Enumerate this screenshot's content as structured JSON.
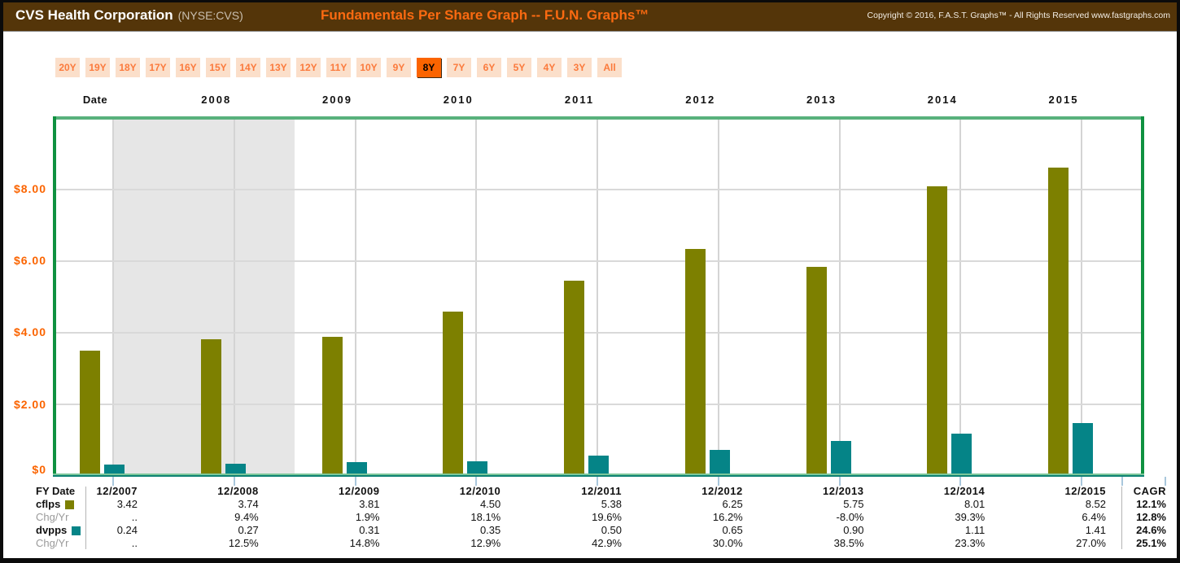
{
  "header": {
    "company": "CVS Health Corporation",
    "ticker": "(NYSE:CVS)",
    "graph_title": "Fundamentals Per Share Graph -- F.U.N. Graphs™",
    "copyright": "Copyright © 2016, F.A.S.T. Graphs™ - All Rights Reserved www.fastgraphs.com"
  },
  "period_buttons": {
    "options": [
      "20Y",
      "19Y",
      "18Y",
      "17Y",
      "16Y",
      "15Y",
      "14Y",
      "13Y",
      "12Y",
      "11Y",
      "10Y",
      "9Y",
      "8Y",
      "7Y",
      "6Y",
      "5Y",
      "4Y",
      "3Y",
      "All"
    ],
    "selected": "8Y"
  },
  "axis": {
    "date_label": "Date",
    "top_years": [
      "2008",
      "2009",
      "2010",
      "2011",
      "2012",
      "2013",
      "2014",
      "2015"
    ],
    "y_ticks": [
      "$8.00",
      "$6.00",
      "$4.00",
      "$2.00",
      "$0"
    ]
  },
  "chart_data": {
    "type": "bar",
    "title": "Fundamentals Per Share Graph -- F.U.N. Graphs™",
    "categories": [
      "12/2007",
      "12/2008",
      "12/2009",
      "12/2010",
      "12/2011",
      "12/2012",
      "12/2013",
      "12/2014",
      "12/2015"
    ],
    "series": [
      {
        "name": "cflps",
        "color": "#7d8000",
        "values": [
          3.42,
          3.74,
          3.81,
          4.5,
          5.38,
          6.25,
          5.75,
          8.01,
          8.52
        ]
      },
      {
        "name": "dvpps",
        "color": "#058487",
        "values": [
          0.24,
          0.27,
          0.31,
          0.35,
          0.5,
          0.65,
          0.9,
          1.11,
          1.41
        ]
      }
    ],
    "xlabel": "Date",
    "ylabel": "",
    "ylim": [
      0,
      9.9
    ],
    "y_gridline_values": [
      2,
      4,
      6,
      8
    ],
    "grid": true,
    "legend_position": "table-row-labels",
    "shaded_region_category_span": [
      0,
      1.5
    ]
  },
  "table": {
    "row_labels": [
      "FY Date",
      "cflps",
      "Chg/Yr",
      "dvpps",
      "Chg/Yr"
    ],
    "columns": [
      {
        "fy": "12/2007",
        "cflps": "3.42",
        "cflps_chg": "..",
        "dvpps": "0.24",
        "dvpps_chg": ".."
      },
      {
        "fy": "12/2008",
        "cflps": "3.74",
        "cflps_chg": "9.4%",
        "dvpps": "0.27",
        "dvpps_chg": "12.5%"
      },
      {
        "fy": "12/2009",
        "cflps": "3.81",
        "cflps_chg": "1.9%",
        "dvpps": "0.31",
        "dvpps_chg": "14.8%"
      },
      {
        "fy": "12/2010",
        "cflps": "4.50",
        "cflps_chg": "18.1%",
        "dvpps": "0.35",
        "dvpps_chg": "12.9%"
      },
      {
        "fy": "12/2011",
        "cflps": "5.38",
        "cflps_chg": "19.6%",
        "dvpps": "0.50",
        "dvpps_chg": "42.9%"
      },
      {
        "fy": "12/2012",
        "cflps": "6.25",
        "cflps_chg": "16.2%",
        "dvpps": "0.65",
        "dvpps_chg": "30.0%"
      },
      {
        "fy": "12/2013",
        "cflps": "5.75",
        "cflps_chg": "-8.0%",
        "dvpps": "0.90",
        "dvpps_chg": "38.5%"
      },
      {
        "fy": "12/2014",
        "cflps": "8.01",
        "cflps_chg": "39.3%",
        "dvpps": "1.11",
        "dvpps_chg": "23.3%"
      },
      {
        "fy": "12/2015",
        "cflps": "8.52",
        "cflps_chg": "6.4%",
        "dvpps": "1.41",
        "dvpps_chg": "27.0%"
      }
    ],
    "cagr": {
      "label": "CAGR",
      "cflps": "12.1%",
      "cflps_chg": "12.8%",
      "dvpps": "24.6%",
      "dvpps_chg": "25.1%"
    }
  },
  "colors": {
    "header_bg": "#543509",
    "accent_orange": "#fb6400",
    "button_bg": "#fbdfca",
    "button_text": "#fb7a3c",
    "selected_button_bg": "#fb6400",
    "cflps_bar": "#7d8000",
    "dvpps_bar": "#058487",
    "chart_border_side": "#0f9140",
    "chart_border_top": "#58b17c",
    "baseline_teal": "#0d8173",
    "recession_band": "#e6e6e6",
    "gridline": "#d9d9d9",
    "tick_blue": "#a9c7dc"
  }
}
